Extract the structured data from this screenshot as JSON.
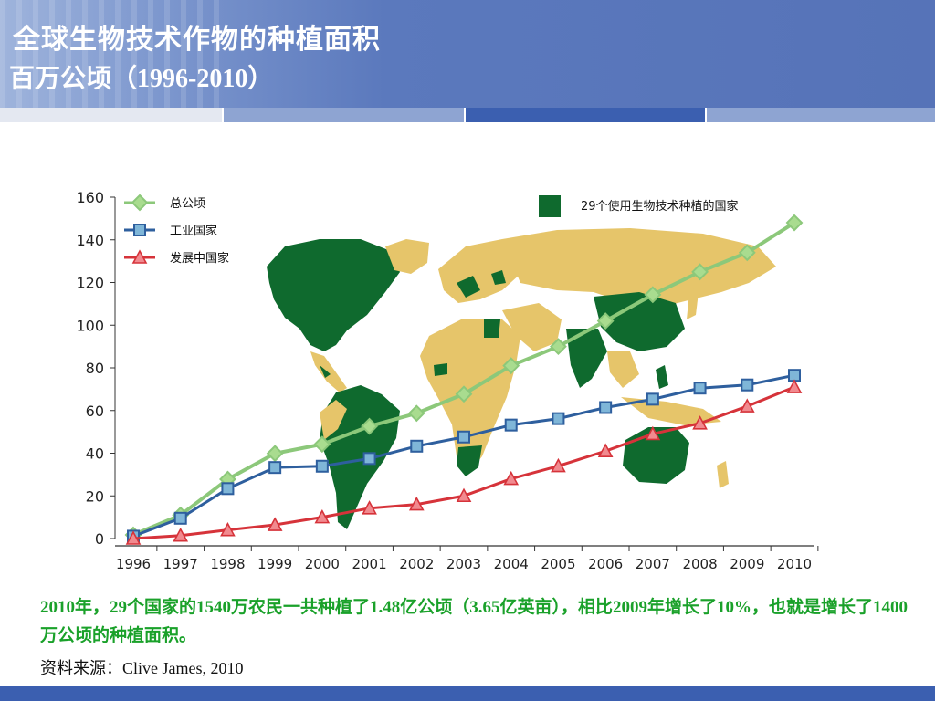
{
  "slide": {
    "title": "全球生物技术作物的种植面积",
    "subtitle": "百万公顷（1996-2010）",
    "note": "2010年，29个国家的1540万农民一共种植了1.48亿公顷（3.65亿英亩），相比2009年增长了10%，也就是增长了1400万公顷的种植面积。",
    "source": "资料来源：Clive James, 2010"
  },
  "colors": {
    "header": "#5673b8",
    "note_text": "#1aa12a",
    "total_line": "#8cc87a",
    "industrial_line": "#2e5f9e",
    "developing_line": "#d6333a",
    "map_green": "#0f6a2e",
    "map_yellow": "#e6c56a"
  },
  "chart_data": {
    "type": "line",
    "title": "",
    "xlabel": "",
    "ylabel": "",
    "x": [
      "1996",
      "1997",
      "1998",
      "1999",
      "2000",
      "2001",
      "2002",
      "2003",
      "2004",
      "2005",
      "2006",
      "2007",
      "2008",
      "2009",
      "2010"
    ],
    "yticks": [
      0,
      20,
      40,
      60,
      80,
      100,
      120,
      140,
      160
    ],
    "ylim": [
      0,
      160
    ],
    "grid": false,
    "legend_position": "top-left",
    "series": [
      {
        "name": "总公顷",
        "marker": "diamond",
        "values": [
          1.7,
          11,
          27.8,
          39.9,
          44.2,
          52.6,
          58.7,
          67.7,
          81,
          90,
          102,
          114.3,
          125,
          134,
          148
        ]
      },
      {
        "name": "工业国家",
        "marker": "square",
        "values": [
          1.1,
          9.5,
          23.4,
          33.3,
          33.9,
          37.5,
          43.3,
          47.6,
          53.2,
          56.2,
          61.4,
          65.3,
          70.5,
          72,
          76.5
        ]
      },
      {
        "name": "发展中国家",
        "marker": "triangle",
        "values": [
          0,
          1.4,
          4,
          6.4,
          10,
          14.2,
          16,
          20,
          28,
          34,
          41,
          49,
          54,
          62,
          71
        ]
      }
    ],
    "map_legend": "29个使用生物技术种植的国家"
  }
}
